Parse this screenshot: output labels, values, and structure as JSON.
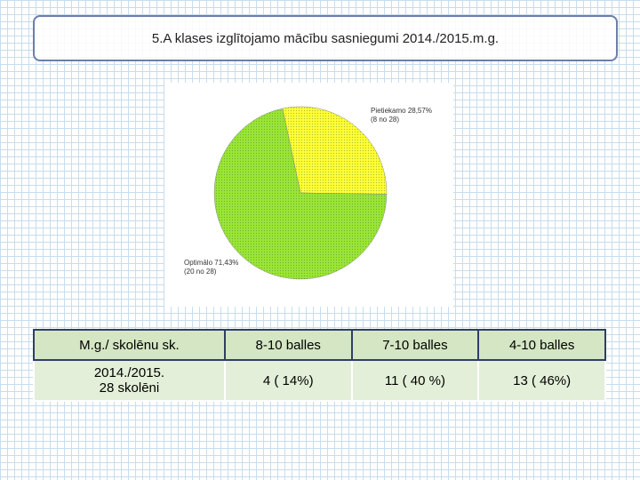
{
  "header": {
    "title": "5.A klases izglītojamo mācību sasniegumi 2014./2015.m.g."
  },
  "chart_data": {
    "type": "pie",
    "categories": [
      "Pietiekamo",
      "Optimālo"
    ],
    "values": [
      28.57,
      71.43
    ],
    "value_labels": [
      "28,57%",
      "71,43%"
    ],
    "notes": [
      "(8 no 28)",
      "(20 no 28)"
    ],
    "colors": [
      "#ffff33",
      "#99e633"
    ]
  },
  "table": {
    "header": [
      "M.g./ skolēnu sk.",
      "8-10 balles",
      "7-10 balles",
      "4-10 balles"
    ],
    "rows": [
      [
        [
          "2014./2015.",
          "28 skolēni"
        ],
        "4  ( 14%)",
        "11 ( 40 %)",
        "13 ( 46%)"
      ]
    ]
  }
}
